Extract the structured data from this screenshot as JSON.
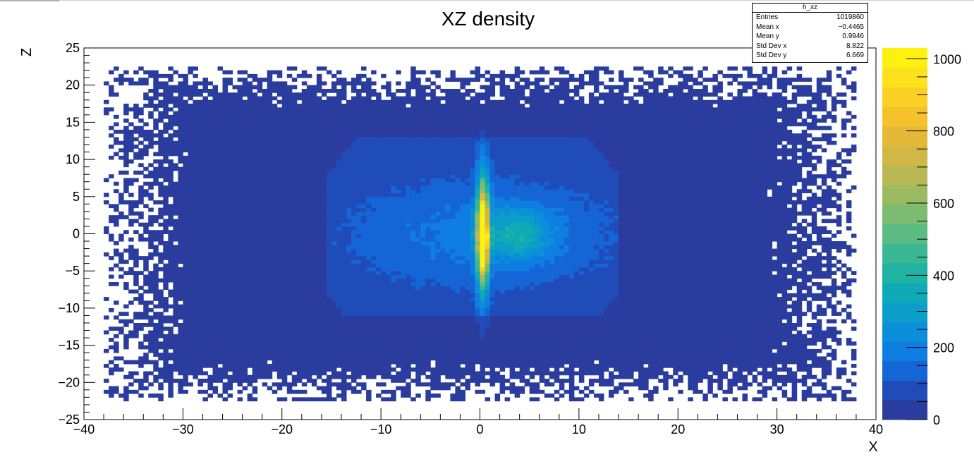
{
  "chart_data": {
    "type": "heatmap",
    "title": "XZ density",
    "xlabel": "X",
    "ylabel": "Z",
    "xlim": [
      -40,
      40
    ],
    "ylim": [
      -25,
      25
    ],
    "x_ticks": [
      -40,
      -30,
      -20,
      -10,
      0,
      10,
      20,
      30,
      40
    ],
    "y_ticks": [
      -25,
      -20,
      -15,
      -10,
      -5,
      0,
      5,
      10,
      15,
      20,
      25
    ],
    "x_tick_labels": [
      "−40",
      "−30",
      "−20",
      "−10",
      "0",
      "10",
      "20",
      "30",
      "40"
    ],
    "y_tick_labels": [
      "−25",
      "−20",
      "−15",
      "−10",
      "−5",
      "0",
      "5",
      "10",
      "15",
      "20",
      "25"
    ],
    "bins": {
      "x": 160,
      "z": 100
    },
    "colorbar": {
      "range": [
        0,
        1030
      ],
      "ticks": [
        0,
        200,
        400,
        600,
        800,
        1000
      ],
      "colors": [
        "#2a3d9e",
        "#204cba",
        "#1465d6",
        "#0f7ee3",
        "#0b8fd8",
        "#0a9ec9",
        "#10aab6",
        "#20b3a4",
        "#3ab893",
        "#5bbb82",
        "#7cbc72",
        "#9bbb62",
        "#b8b954",
        "#d1b746",
        "#e6b838",
        "#f5c22c",
        "#fbd024",
        "#fde11c",
        "#fdf10f"
      ]
    },
    "features": {
      "background_half_width_x": 38,
      "background_half_height_z": 22.5,
      "inner_core_x_range": [
        -15.5,
        14
      ],
      "inner_core_z_range": [
        -11,
        13
      ],
      "peak_x": 0.3,
      "peak_value": 1030,
      "secondary_blob": {
        "x": 3.8,
        "z": 0,
        "value": 300
      }
    },
    "stats": {
      "name": "h_xz",
      "entries": [
        {
          "label": "Entries",
          "value": "1019860"
        },
        {
          "label": "Mean x",
          "value": "−0.4465"
        },
        {
          "label": "Mean y",
          "value": "0.9946"
        },
        {
          "label": "Std Dev x",
          "value": "8.822"
        },
        {
          "label": "Std Dev y",
          "value": "6.669"
        }
      ]
    }
  }
}
